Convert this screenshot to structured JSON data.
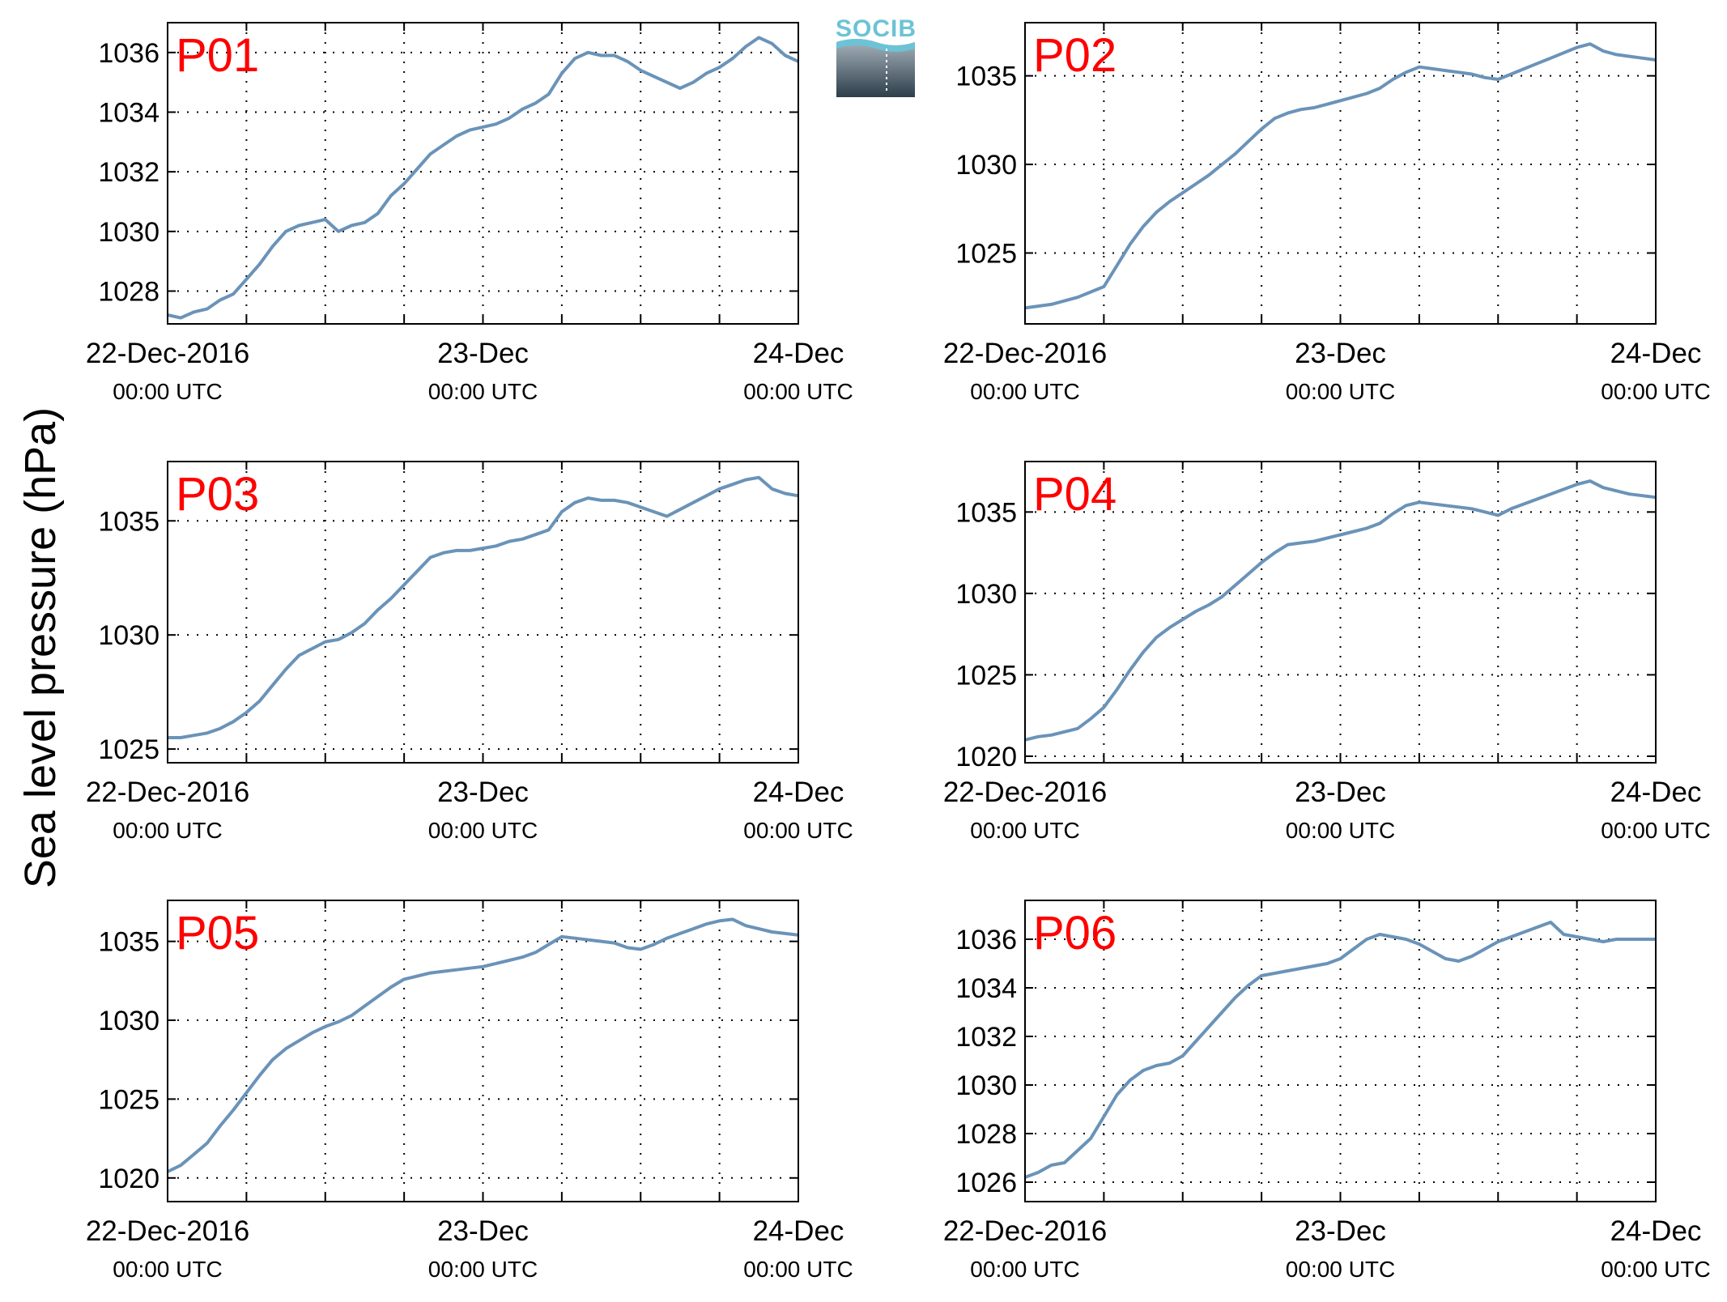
{
  "figure": {
    "ylabel": "Sea level pressure (hPa)",
    "logo_text": "SOCIB",
    "colors": {
      "line": "#6a93b8",
      "panel_label": "#ff0000",
      "grid": "#000000"
    }
  },
  "chart_data": [
    {
      "type": "line",
      "label": "P01",
      "ylim": [
        1026.9,
        1037.0
      ],
      "yticks": [
        1028,
        1030,
        1032,
        1034,
        1036
      ],
      "x_ticks": [
        {
          "date": "22-Dec-2016",
          "time": "00:00 UTC"
        },
        {
          "date": "23-Dec",
          "time": "00:00 UTC"
        },
        {
          "date": "24-Dec",
          "time": "00:00 UTC"
        }
      ],
      "x_range_hours": [
        0,
        48
      ],
      "grid": true,
      "x": [
        0,
        1,
        2,
        3,
        4,
        5,
        6,
        7,
        8,
        9,
        10,
        11,
        12,
        13,
        14,
        15,
        16,
        17,
        18,
        19,
        20,
        21,
        22,
        23,
        24,
        25,
        26,
        27,
        28,
        29,
        30,
        31,
        32,
        33,
        34,
        35,
        36,
        37,
        38,
        39,
        40,
        41,
        42,
        43,
        44,
        45,
        46,
        47,
        48
      ],
      "y": [
        1027.2,
        1027.1,
        1027.3,
        1027.4,
        1027.7,
        1027.9,
        1028.4,
        1028.9,
        1029.5,
        1030.0,
        1030.2,
        1030.3,
        1030.4,
        1030.0,
        1030.2,
        1030.3,
        1030.6,
        1031.2,
        1031.6,
        1032.1,
        1032.6,
        1032.9,
        1033.2,
        1033.4,
        1033.5,
        1033.6,
        1033.8,
        1034.1,
        1034.3,
        1034.6,
        1035.3,
        1035.8,
        1036.0,
        1035.9,
        1035.9,
        1035.7,
        1035.4,
        1035.2,
        1035.0,
        1034.8,
        1035.0,
        1035.3,
        1035.5,
        1035.8,
        1036.2,
        1036.5,
        1036.3,
        1035.9,
        1035.7
      ]
    },
    {
      "type": "line",
      "label": "P02",
      "ylim": [
        1021.0,
        1038.0
      ],
      "yticks": [
        1025,
        1030,
        1035
      ],
      "x_ticks": [
        {
          "date": "22-Dec-2016",
          "time": "00:00 UTC"
        },
        {
          "date": "23-Dec",
          "time": "00:00 UTC"
        },
        {
          "date": "24-Dec",
          "time": "00:00 UTC"
        }
      ],
      "x_range_hours": [
        0,
        48
      ],
      "grid": true,
      "x": [
        0,
        1,
        2,
        3,
        4,
        5,
        6,
        7,
        8,
        9,
        10,
        11,
        12,
        13,
        14,
        15,
        16,
        17,
        18,
        19,
        20,
        21,
        22,
        23,
        24,
        25,
        26,
        27,
        28,
        29,
        30,
        31,
        32,
        33,
        34,
        35,
        36,
        37,
        38,
        39,
        40,
        41,
        42,
        43,
        44,
        45,
        46,
        47,
        48
      ],
      "y": [
        1021.9,
        1022.0,
        1022.1,
        1022.3,
        1022.5,
        1022.8,
        1023.1,
        1024.3,
        1025.5,
        1026.5,
        1027.3,
        1027.9,
        1028.4,
        1028.9,
        1029.4,
        1030.0,
        1030.6,
        1031.3,
        1032.0,
        1032.6,
        1032.9,
        1033.1,
        1033.2,
        1033.4,
        1033.6,
        1033.8,
        1034.0,
        1034.3,
        1034.8,
        1035.2,
        1035.5,
        1035.4,
        1035.3,
        1035.2,
        1035.1,
        1034.9,
        1034.8,
        1035.1,
        1035.4,
        1035.7,
        1036.0,
        1036.3,
        1036.6,
        1036.8,
        1036.4,
        1036.2,
        1036.1,
        1036.0,
        1035.9
      ]
    },
    {
      "type": "line",
      "label": "P03",
      "ylim": [
        1024.4,
        1037.6
      ],
      "yticks": [
        1025,
        1030,
        1035
      ],
      "x_ticks": [
        {
          "date": "22-Dec-2016",
          "time": "00:00 UTC"
        },
        {
          "date": "23-Dec",
          "time": "00:00 UTC"
        },
        {
          "date": "24-Dec",
          "time": "00:00 UTC"
        }
      ],
      "x_range_hours": [
        0,
        48
      ],
      "grid": true,
      "x": [
        0,
        1,
        2,
        3,
        4,
        5,
        6,
        7,
        8,
        9,
        10,
        11,
        12,
        13,
        14,
        15,
        16,
        17,
        18,
        19,
        20,
        21,
        22,
        23,
        24,
        25,
        26,
        27,
        28,
        29,
        30,
        31,
        32,
        33,
        34,
        35,
        36,
        37,
        38,
        39,
        40,
        41,
        42,
        43,
        44,
        45,
        46,
        47,
        48
      ],
      "y": [
        1025.5,
        1025.5,
        1025.6,
        1025.7,
        1025.9,
        1026.2,
        1026.6,
        1027.1,
        1027.8,
        1028.5,
        1029.1,
        1029.4,
        1029.7,
        1029.8,
        1030.1,
        1030.5,
        1031.1,
        1031.6,
        1032.2,
        1032.8,
        1033.4,
        1033.6,
        1033.7,
        1033.7,
        1033.8,
        1033.9,
        1034.1,
        1034.2,
        1034.4,
        1034.6,
        1035.4,
        1035.8,
        1036.0,
        1035.9,
        1035.9,
        1035.8,
        1035.6,
        1035.4,
        1035.2,
        1035.5,
        1035.8,
        1036.1,
        1036.4,
        1036.6,
        1036.8,
        1036.9,
        1036.4,
        1036.2,
        1036.1
      ]
    },
    {
      "type": "line",
      "label": "P04",
      "ylim": [
        1019.6,
        1038.1
      ],
      "yticks": [
        1020,
        1025,
        1030,
        1035
      ],
      "x_ticks": [
        {
          "date": "22-Dec-2016",
          "time": "00:00 UTC"
        },
        {
          "date": "23-Dec",
          "time": "00:00 UTC"
        },
        {
          "date": "24-Dec",
          "time": "00:00 UTC"
        }
      ],
      "x_range_hours": [
        0,
        48
      ],
      "grid": true,
      "x": [
        0,
        1,
        2,
        3,
        4,
        5,
        6,
        7,
        8,
        9,
        10,
        11,
        12,
        13,
        14,
        15,
        16,
        17,
        18,
        19,
        20,
        21,
        22,
        23,
        24,
        25,
        26,
        27,
        28,
        29,
        30,
        31,
        32,
        33,
        34,
        35,
        36,
        37,
        38,
        39,
        40,
        41,
        42,
        43,
        44,
        45,
        46,
        47,
        48
      ],
      "y": [
        1021.0,
        1021.2,
        1021.3,
        1021.5,
        1021.7,
        1022.3,
        1023.0,
        1024.1,
        1025.3,
        1026.4,
        1027.3,
        1027.9,
        1028.4,
        1028.9,
        1029.3,
        1029.8,
        1030.5,
        1031.2,
        1031.9,
        1032.5,
        1033.0,
        1033.1,
        1033.2,
        1033.4,
        1033.6,
        1033.8,
        1034.0,
        1034.3,
        1034.9,
        1035.4,
        1035.6,
        1035.5,
        1035.4,
        1035.3,
        1035.2,
        1035.0,
        1034.8,
        1035.2,
        1035.5,
        1035.8,
        1036.1,
        1036.4,
        1036.7,
        1036.9,
        1036.5,
        1036.3,
        1036.1,
        1036.0,
        1035.9
      ]
    },
    {
      "type": "line",
      "label": "P05",
      "ylim": [
        1018.5,
        1037.6
      ],
      "yticks": [
        1020,
        1025,
        1030,
        1035
      ],
      "x_ticks": [
        {
          "date": "22-Dec-2016",
          "time": "00:00 UTC"
        },
        {
          "date": "23-Dec",
          "time": "00:00 UTC"
        },
        {
          "date": "24-Dec",
          "time": "00:00 UTC"
        }
      ],
      "x_range_hours": [
        0,
        48
      ],
      "grid": true,
      "x": [
        0,
        1,
        2,
        3,
        4,
        5,
        6,
        7,
        8,
        9,
        10,
        11,
        12,
        13,
        14,
        15,
        16,
        17,
        18,
        19,
        20,
        21,
        22,
        23,
        24,
        25,
        26,
        27,
        28,
        29,
        30,
        31,
        32,
        33,
        34,
        35,
        36,
        37,
        38,
        39,
        40,
        41,
        42,
        43,
        44,
        45,
        46,
        47,
        48
      ],
      "y": [
        1020.4,
        1020.8,
        1021.5,
        1022.2,
        1023.3,
        1024.3,
        1025.4,
        1026.5,
        1027.5,
        1028.2,
        1028.7,
        1029.2,
        1029.6,
        1029.9,
        1030.3,
        1030.9,
        1031.5,
        1032.1,
        1032.6,
        1032.8,
        1033.0,
        1033.1,
        1033.2,
        1033.3,
        1033.4,
        1033.6,
        1033.8,
        1034.0,
        1034.3,
        1034.8,
        1035.3,
        1035.2,
        1035.1,
        1035.0,
        1034.9,
        1034.6,
        1034.5,
        1034.8,
        1035.2,
        1035.5,
        1035.8,
        1036.1,
        1036.3,
        1036.4,
        1036.0,
        1035.8,
        1035.6,
        1035.5,
        1035.4
      ]
    },
    {
      "type": "line",
      "label": "P06",
      "ylim": [
        1025.2,
        1037.6
      ],
      "yticks": [
        1026,
        1028,
        1030,
        1032,
        1034,
        1036
      ],
      "x_ticks": [
        {
          "date": "22-Dec-2016",
          "time": "00:00 UTC"
        },
        {
          "date": "23-Dec",
          "time": "00:00 UTC"
        },
        {
          "date": "24-Dec",
          "time": "00:00 UTC"
        }
      ],
      "x_range_hours": [
        0,
        48
      ],
      "grid": true,
      "x": [
        0,
        1,
        2,
        3,
        4,
        5,
        6,
        7,
        8,
        9,
        10,
        11,
        12,
        13,
        14,
        15,
        16,
        17,
        18,
        19,
        20,
        21,
        22,
        23,
        24,
        25,
        26,
        27,
        28,
        29,
        30,
        31,
        32,
        33,
        34,
        35,
        36,
        37,
        38,
        39,
        40,
        41,
        42,
        43,
        44,
        45,
        46,
        47,
        48
      ],
      "y": [
        1026.2,
        1026.4,
        1026.7,
        1026.8,
        1027.3,
        1027.8,
        1028.7,
        1029.6,
        1030.2,
        1030.6,
        1030.8,
        1030.9,
        1031.2,
        1031.8,
        1032.4,
        1033.0,
        1033.6,
        1034.1,
        1034.5,
        1034.6,
        1034.7,
        1034.8,
        1034.9,
        1035.0,
        1035.2,
        1035.6,
        1036.0,
        1036.2,
        1036.1,
        1036.0,
        1035.8,
        1035.5,
        1035.2,
        1035.1,
        1035.3,
        1035.6,
        1035.9,
        1036.1,
        1036.3,
        1036.5,
        1036.7,
        1036.2,
        1036.1,
        1036.0,
        1035.9,
        1036.0,
        1036.0,
        1036.0,
        1036.0
      ]
    }
  ]
}
